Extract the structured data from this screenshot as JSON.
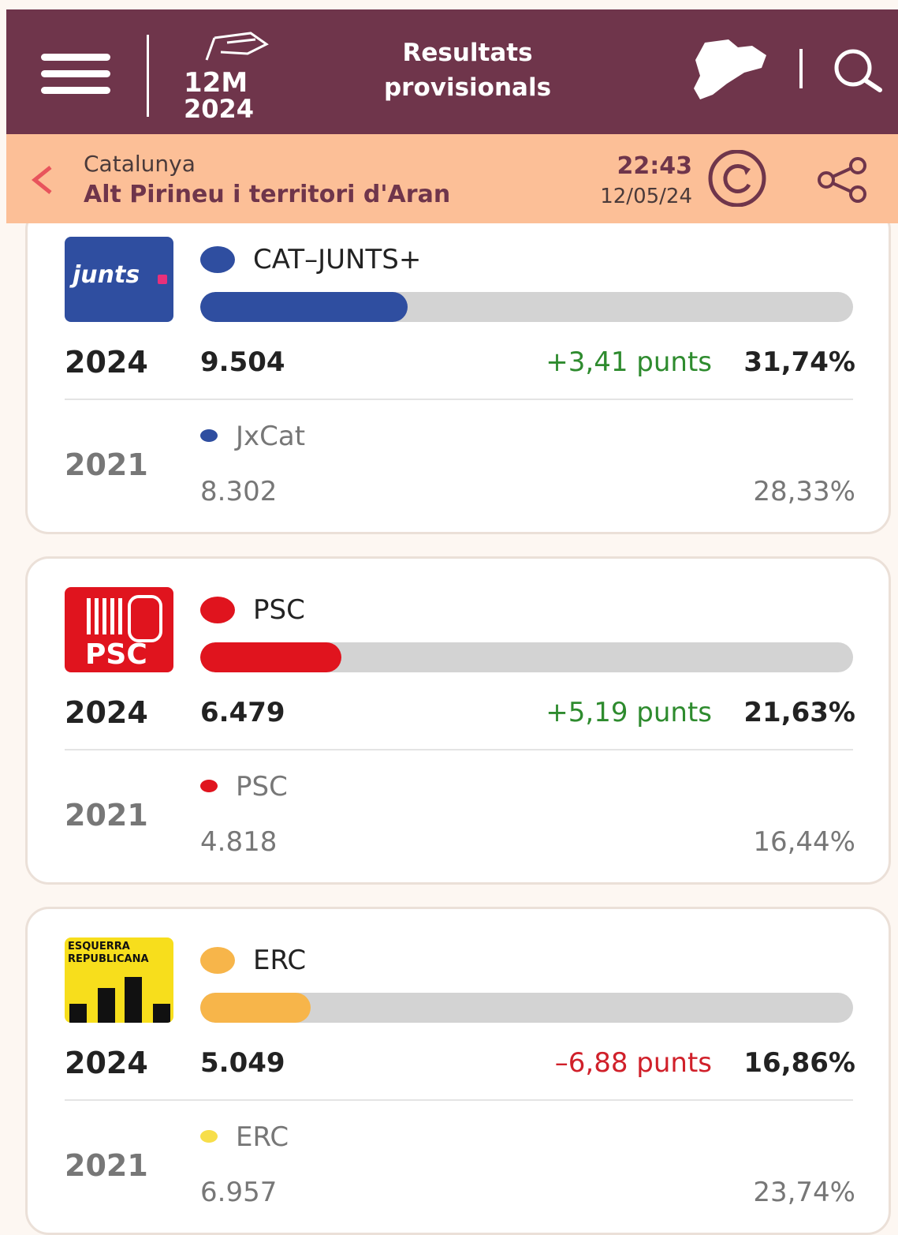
{
  "header": {
    "logo_top": "12M",
    "logo_bottom": "2024",
    "title_line1": "Resultats",
    "title_line2": "provisionals"
  },
  "subheader": {
    "region": "Catalunya",
    "district": "Alt Pirineu i territori d'Aran",
    "time": "22:43",
    "date": "12/05/24"
  },
  "parties": [
    {
      "logo_text": "junts",
      "name": "CAT–JUNTS+",
      "color": "#2f4ea0",
      "year": "2024",
      "votes": "9.504",
      "change": "+3,41 punts",
      "change_color": "#2e8b2e",
      "share": 31.74,
      "share_label": "31,74%",
      "prev": {
        "year": "2021",
        "name": "JxCat",
        "color": "#2f4ea0",
        "votes": "8.302",
        "share_label": "28,33%"
      }
    },
    {
      "logo_text": "PSC",
      "name": "PSC",
      "color": "#e0141e",
      "year": "2024",
      "votes": "6.479",
      "change": "+5,19 punts",
      "change_color": "#2e8b2e",
      "share": 21.63,
      "share_label": "21,63%",
      "prev": {
        "year": "2021",
        "name": "PSC",
        "color": "#e0141e",
        "votes": "4.818",
        "share_label": "16,44%"
      }
    },
    {
      "logo_text": "ESQUERRA REPUBLICANA",
      "name": "ERC",
      "color": "#f7b54a",
      "year": "2024",
      "votes": "5.049",
      "change": "–6,88 punts",
      "change_color": "#d0202a",
      "share": 16.86,
      "share_label": "16,86%",
      "prev": {
        "year": "2021",
        "name": "ERC",
        "color": "#f7de4a",
        "votes": "6.957",
        "share_label": "23,74%"
      }
    }
  ]
}
